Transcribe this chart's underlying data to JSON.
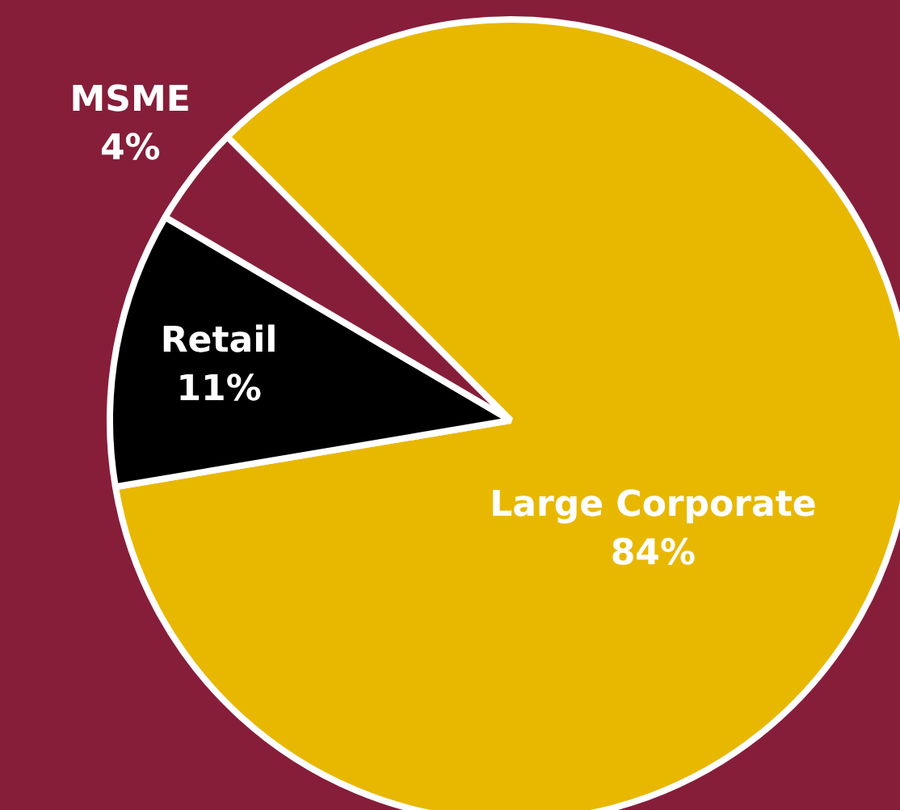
{
  "chart_data": {
    "type": "pie",
    "categories": [
      "Large Corporate",
      "Retail",
      "MSME"
    ],
    "values": [
      84,
      11,
      4
    ],
    "value_labels": [
      "84%",
      "11%",
      "4%"
    ],
    "colors": [
      "#e8b800",
      "#000000",
      "#861e3a"
    ],
    "legend": false
  }
}
